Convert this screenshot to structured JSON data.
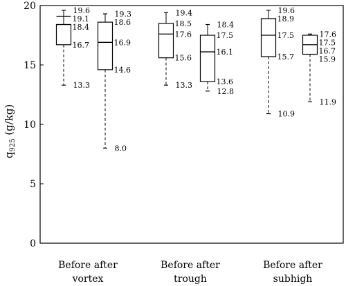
{
  "chart_data": {
    "type": "box",
    "ylabel": "q",
    "ylabel_sub": "925",
    "ylabel_unit": " (g/kg)",
    "ylim": [
      0,
      20
    ],
    "yticks": [
      "0",
      "5",
      "10",
      "15",
      "20"
    ],
    "grid": false,
    "groups": [
      {
        "label_line1": "Before after",
        "label_line2": "vortex",
        "boxes": [
          {
            "max": 19.6,
            "upper_bar": 19.1,
            "q3": 18.4,
            "median": 18.4,
            "q1": 16.7,
            "min": 13.3,
            "labels": [
              "19.6",
              "19.1",
              "18.4",
              "16.7",
              "13.3"
            ]
          },
          {
            "max": 19.3,
            "q3": 18.6,
            "median": 16.9,
            "q1": 14.6,
            "min": 8.0,
            "labels": [
              "19.3",
              "18.6",
              "16.9",
              "14.6",
              "8.0"
            ]
          }
        ]
      },
      {
        "label_line1": "Before after",
        "label_line2": "trough",
        "boxes": [
          {
            "max": 19.4,
            "q3": 18.5,
            "median": 17.6,
            "q1": 15.6,
            "min": 13.3,
            "labels": [
              "19.4",
              "18.5",
              "17.6",
              "15.6",
              "13.3"
            ]
          },
          {
            "max": 18.4,
            "q3": 17.5,
            "median": 16.1,
            "q1": 13.6,
            "min": 12.8,
            "labels": [
              "18.4",
              "17.5",
              "16.1",
              "13.6",
              "12.8"
            ]
          }
        ]
      },
      {
        "label_line1": "Before after",
        "label_line2": "subhigh",
        "boxes": [
          {
            "max": 19.6,
            "q3": 18.9,
            "median": 17.5,
            "q1": 15.7,
            "min": 10.9,
            "labels": [
              "19.6",
              "18.9",
              "17.5",
              "15.7",
              "10.9"
            ]
          },
          {
            "max": 17.6,
            "q3": 17.5,
            "median": 16.7,
            "q1": 15.9,
            "min": 11.9,
            "labels": [
              "17.6",
              "17.5",
              "16.7",
              "15.9",
              "11.9"
            ]
          }
        ]
      }
    ]
  }
}
